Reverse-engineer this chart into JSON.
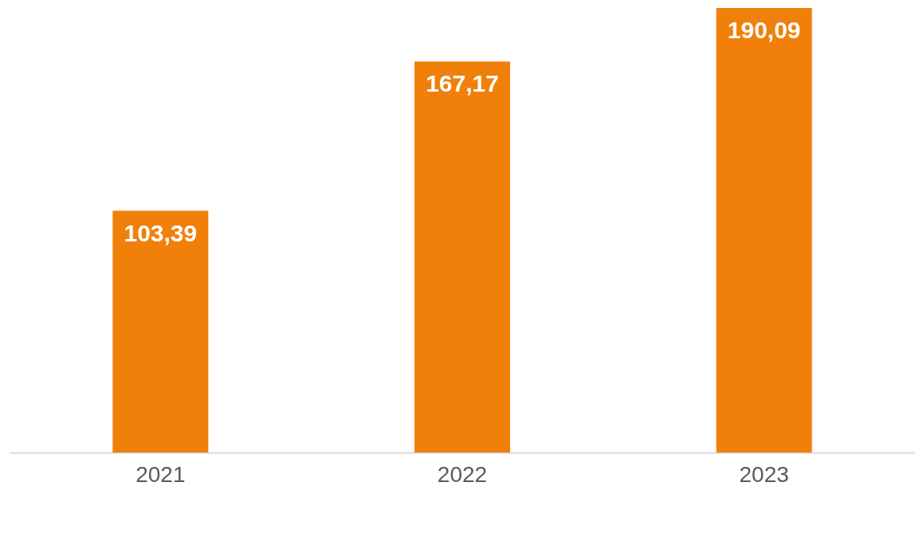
{
  "chart_data": {
    "type": "bar",
    "categories": [
      "2021",
      "2022",
      "2023"
    ],
    "values": [
      103.39,
      167.17,
      190.09
    ],
    "color": "#f0800a",
    "value_labels": [
      "103,39",
      "167,17",
      "190,09"
    ],
    "grid": false
  }
}
